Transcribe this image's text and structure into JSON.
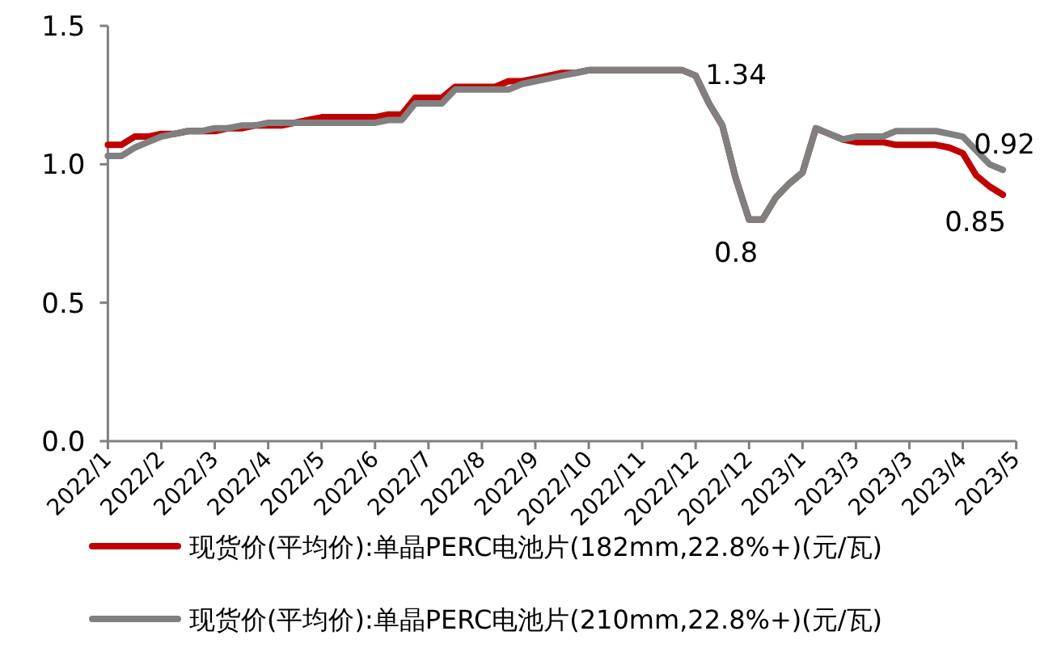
{
  "chart_data": {
    "type": "line",
    "categories": [
      "2022/1",
      null,
      null,
      null,
      "2022/2",
      null,
      null,
      null,
      "2022/3",
      null,
      null,
      null,
      "2022/4",
      null,
      null,
      null,
      "2022/5",
      null,
      null,
      null,
      "2022/6",
      null,
      null,
      null,
      "2022/7",
      null,
      null,
      null,
      "2022/8",
      null,
      null,
      null,
      "2022/9",
      null,
      null,
      null,
      "2022/10",
      null,
      null,
      null,
      "2022/11",
      null,
      null,
      null,
      "2022/12",
      null,
      null,
      null,
      "2022/12",
      null,
      null,
      null,
      "2023/1",
      null,
      null,
      null,
      "2023/3",
      null,
      null,
      null,
      "2023/3",
      null,
      null,
      null,
      "2023/4",
      null,
      null,
      null,
      "2023/5"
    ],
    "series": [
      {
        "name": "现货价(平均价):单晶PERC电池片(182mm,22.8%+)(元/瓦)",
        "color": "#c00000",
        "values": [
          1.07,
          1.07,
          1.1,
          1.1,
          1.11,
          1.11,
          1.12,
          1.12,
          1.12,
          1.13,
          1.13,
          1.14,
          1.14,
          1.14,
          1.15,
          1.16,
          1.17,
          1.17,
          1.17,
          1.17,
          1.17,
          1.18,
          1.18,
          1.24,
          1.24,
          1.24,
          1.28,
          1.28,
          1.28,
          1.28,
          1.3,
          1.3,
          1.31,
          1.32,
          1.33,
          1.33,
          1.34,
          1.34,
          1.34,
          1.34,
          1.34,
          1.34,
          1.34,
          1.34,
          1.32,
          1.22,
          1.14,
          0.95,
          0.8,
          0.8,
          0.88,
          0.93,
          0.97,
          1.13,
          1.11,
          1.09,
          1.08,
          1.08,
          1.08,
          1.07,
          1.07,
          1.07,
          1.07,
          1.06,
          1.04,
          0.96,
          0.92,
          0.89,
          null
        ]
      },
      {
        "name": "现货价(平均价):单晶PERC电池片(210mm,22.8%+)(元/瓦)",
        "color": "#808080",
        "values": [
          1.03,
          1.03,
          1.06,
          1.08,
          1.1,
          1.11,
          1.12,
          1.12,
          1.13,
          1.13,
          1.14,
          1.14,
          1.15,
          1.15,
          1.15,
          1.15,
          1.15,
          1.15,
          1.15,
          1.15,
          1.15,
          1.16,
          1.16,
          1.22,
          1.22,
          1.22,
          1.27,
          1.27,
          1.27,
          1.27,
          1.27,
          1.29,
          1.3,
          1.31,
          1.32,
          1.33,
          1.34,
          1.34,
          1.34,
          1.34,
          1.34,
          1.34,
          1.34,
          1.34,
          1.32,
          1.22,
          1.14,
          0.95,
          0.8,
          0.8,
          0.88,
          0.93,
          0.97,
          1.13,
          1.11,
          1.09,
          1.1,
          1.1,
          1.1,
          1.12,
          1.12,
          1.12,
          1.12,
          1.11,
          1.1,
          1.05,
          1.0,
          0.98,
          null
        ]
      }
    ],
    "ylim": [
      0,
      1.5
    ],
    "yticks": [
      {
        "value": 0,
        "label": "0.0"
      },
      {
        "value": 0.5,
        "label": "0.5"
      },
      {
        "value": 1,
        "label": "1.0"
      },
      {
        "value": 1.5,
        "label": "1.5"
      }
    ],
    "grid": false,
    "marker": "none",
    "line_style": "solid",
    "legend": "bottom",
    "annotations": [
      "1.34",
      "0.8",
      "0.92",
      "0.85"
    ]
  }
}
